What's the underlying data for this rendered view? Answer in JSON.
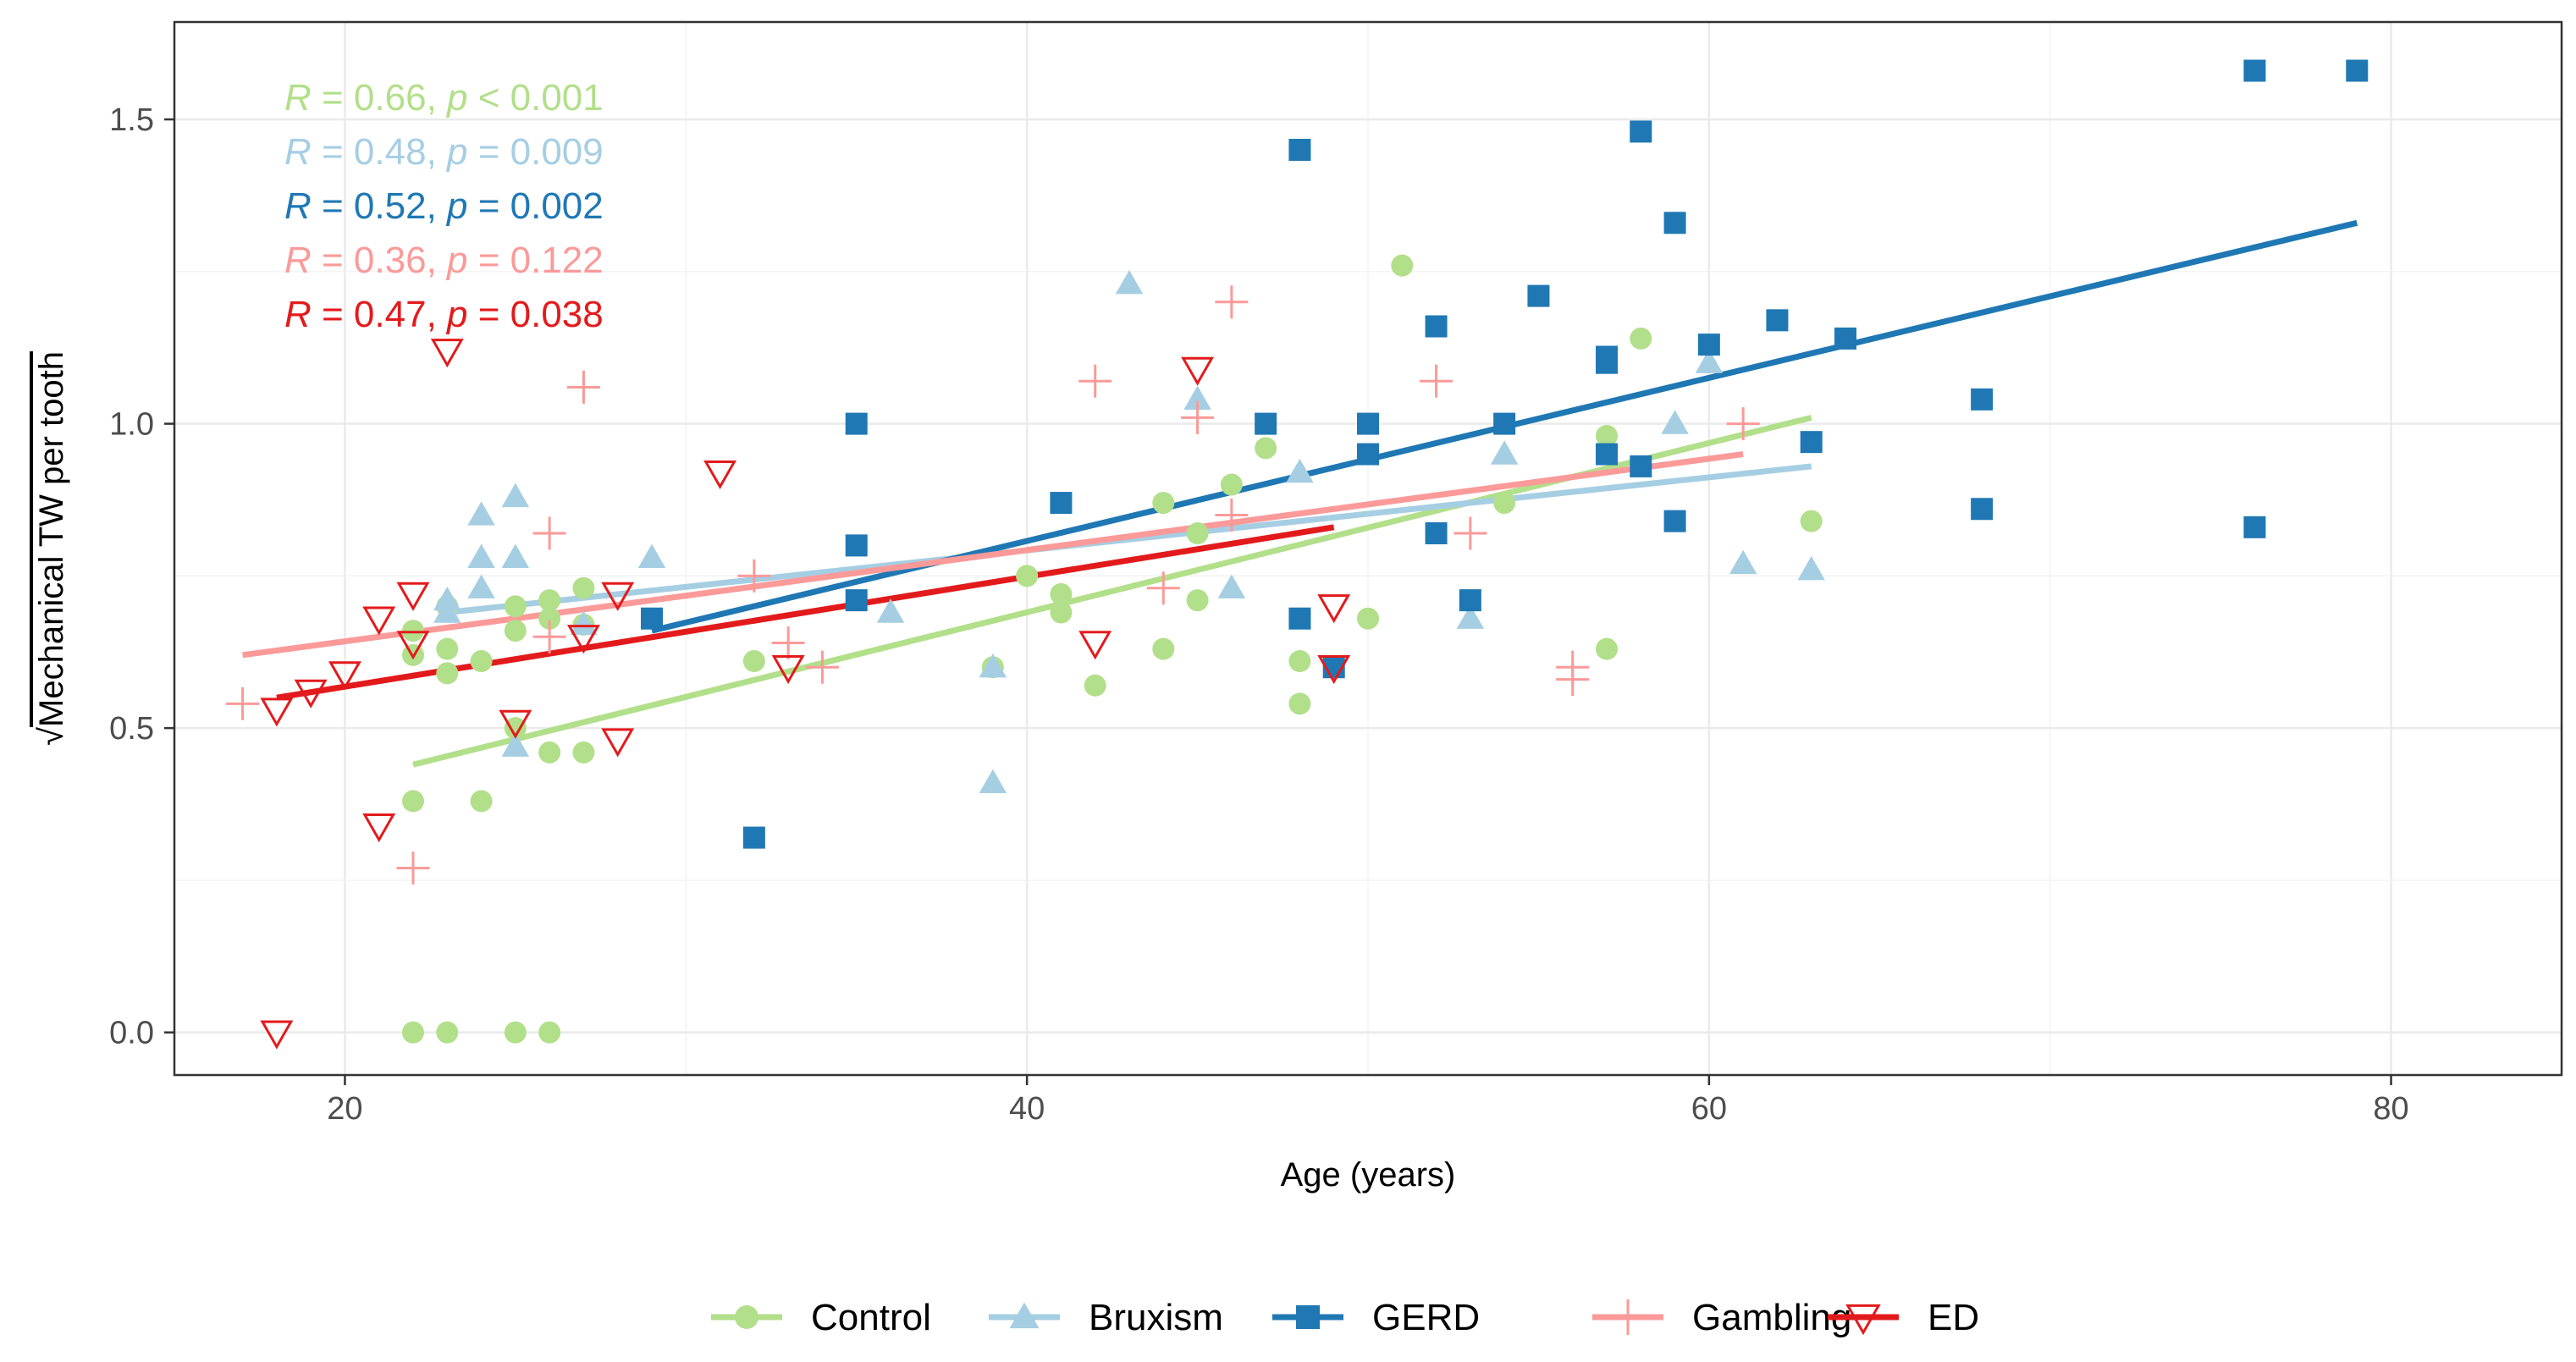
{
  "chart_data": {
    "type": "scatter",
    "title": "",
    "xlabel": "Age (years)",
    "ylabel": "Mechanical TW per tooth",
    "ylabel_radical": "√",
    "xlim": [
      15,
      85
    ],
    "ylim": [
      -0.07,
      1.66
    ],
    "x_ticks": [
      20,
      40,
      60,
      80
    ],
    "y_ticks": [
      0.0,
      0.5,
      1.0,
      1.5
    ],
    "x_tick_labels": [
      "20",
      "40",
      "60",
      "80"
    ],
    "y_tick_labels": [
      "0.0",
      "0.5",
      "1.0",
      "1.5"
    ],
    "grid": true,
    "legend_position": "bottom",
    "series": [
      {
        "name": "Control",
        "color": "#b2df8a",
        "marker": "circle",
        "annotation": {
          "r_label": "R",
          "r_text": " = 0.66, ",
          "p_label": "p",
          "p_text": " < 0.001"
        },
        "fit": {
          "x": [
            22,
            63
          ],
          "y": [
            0.44,
            1.01
          ]
        },
        "x": [
          22,
          22,
          22,
          23,
          23,
          23,
          24,
          24,
          25,
          25,
          25,
          26,
          26,
          26,
          27,
          27,
          27,
          22,
          23,
          25,
          26,
          32,
          39,
          40,
          41,
          41,
          42,
          44,
          44,
          45,
          45,
          46,
          47,
          48,
          48,
          50,
          51,
          54,
          57,
          57,
          58,
          63
        ],
        "y": [
          0.38,
          0.62,
          0.66,
          0.59,
          0.63,
          0.7,
          0.38,
          0.61,
          0.5,
          0.66,
          0.7,
          0.46,
          0.68,
          0.71,
          0.46,
          0.67,
          0.73,
          0.0,
          0.0,
          0.0,
          0.0,
          0.61,
          0.6,
          0.75,
          0.69,
          0.72,
          0.57,
          0.63,
          0.87,
          0.71,
          0.82,
          0.9,
          0.96,
          0.54,
          0.61,
          0.68,
          1.26,
          0.87,
          0.63,
          0.98,
          1.14,
          0.84
        ]
      },
      {
        "name": "Bruxism",
        "color": "#a6cee3",
        "marker": "triangle",
        "annotation": {
          "r_label": "R",
          "r_text": " = 0.48, ",
          "p_label": "p",
          "p_text": " = 0.009"
        },
        "fit": {
          "x": [
            23,
            63
          ],
          "y": [
            0.69,
            0.93
          ]
        },
        "x": [
          23,
          23,
          24,
          24,
          24,
          25,
          25,
          25,
          27,
          29,
          36,
          39,
          39,
          43,
          45,
          46,
          48,
          53,
          54,
          59,
          60,
          61,
          63
        ],
        "y": [
          0.71,
          0.69,
          0.85,
          0.78,
          0.73,
          0.88,
          0.78,
          0.47,
          0.67,
          0.78,
          0.69,
          0.6,
          0.41,
          1.23,
          1.04,
          0.73,
          0.92,
          0.68,
          0.95,
          1.0,
          1.1,
          0.77,
          0.76
        ]
      },
      {
        "name": "GERD",
        "color": "#1f78b4",
        "marker": "square",
        "annotation": {
          "r_label": "R",
          "r_text": " = 0.52, ",
          "p_label": "p",
          "p_text": " = 0.002"
        },
        "fit": {
          "x": [
            29,
            79
          ],
          "y": [
            0.66,
            1.33
          ]
        },
        "x": [
          29,
          32,
          35,
          35,
          35,
          41,
          47,
          48,
          48,
          49,
          50,
          50,
          52,
          52,
          53,
          54,
          55,
          57,
          57,
          57,
          58,
          58,
          59,
          59,
          60,
          62,
          63,
          64,
          68,
          68,
          76,
          76,
          79
        ],
        "y": [
          0.68,
          0.32,
          1.0,
          0.8,
          0.71,
          0.87,
          1.0,
          1.45,
          0.68,
          0.6,
          1.0,
          0.95,
          1.16,
          0.82,
          0.71,
          1.0,
          1.21,
          1.11,
          1.1,
          0.95,
          1.48,
          0.93,
          1.33,
          0.84,
          1.13,
          1.17,
          0.97,
          1.14,
          1.04,
          0.86,
          1.58,
          0.83,
          1.58
        ]
      },
      {
        "name": "Gambling",
        "color": "#fb9a99",
        "marker": "plus",
        "annotation": {
          "r_label": "R",
          "r_text": " = 0.36, ",
          "p_label": "p",
          "p_text": " = 0.122"
        },
        "fit": {
          "x": [
            17,
            61
          ],
          "y": [
            0.62,
            0.95
          ]
        },
        "x": [
          17,
          22,
          26,
          26,
          27,
          32,
          33,
          34,
          42,
          44,
          45,
          46,
          46,
          52,
          53,
          56,
          56,
          61
        ],
        "y": [
          0.54,
          0.27,
          0.82,
          0.65,
          1.06,
          0.75,
          0.64,
          0.6,
          1.07,
          0.73,
          1.01,
          1.2,
          0.85,
          1.07,
          0.82,
          0.6,
          0.58,
          1.0
        ]
      },
      {
        "name": "ED",
        "color": "#e31a1c",
        "marker": "triangle-down",
        "annotation": {
          "r_label": "R",
          "r_text": " = 0.47, ",
          "p_label": "p",
          "p_text": " = 0.038"
        },
        "fit": {
          "x": [
            18,
            49
          ],
          "y": [
            0.55,
            0.83
          ]
        },
        "x": [
          18,
          18,
          19,
          20,
          21,
          21,
          22,
          22,
          23,
          25,
          27,
          28,
          28,
          31,
          33,
          42,
          45,
          49,
          49
        ],
        "y": [
          0.0,
          0.53,
          0.56,
          0.59,
          0.68,
          0.34,
          0.72,
          0.64,
          1.12,
          0.51,
          0.65,
          0.72,
          0.48,
          0.92,
          0.6,
          0.64,
          1.09,
          0.7,
          0.6
        ]
      }
    ]
  }
}
